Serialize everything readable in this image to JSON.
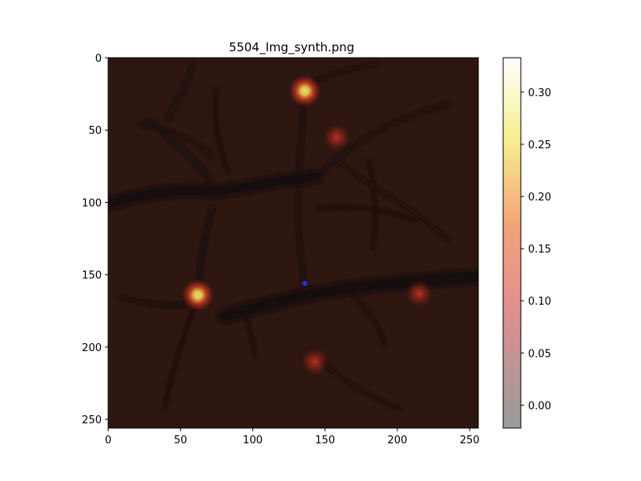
{
  "chart_data": {
    "type": "heatmap",
    "title": "5504_Img_synth.png",
    "xlabel": "",
    "ylabel": "",
    "xlim": [
      0,
      256
    ],
    "ylim": [
      256,
      0
    ],
    "x_ticks": [
      0,
      50,
      100,
      150,
      200,
      250
    ],
    "y_ticks": [
      0,
      50,
      100,
      150,
      200,
      250
    ],
    "colorbar": {
      "colormap": "hot",
      "range": [
        -0.022,
        0.333
      ],
      "ticks": [
        "0.00",
        "0.05",
        "0.10",
        "0.15",
        "0.20",
        "0.25",
        "0.30"
      ]
    },
    "hotspots": [
      {
        "x": 136,
        "y": 23,
        "value": 0.24
      },
      {
        "x": 62,
        "y": 164,
        "value": 0.22
      },
      {
        "x": 158,
        "y": 55,
        "value": 0.09
      },
      {
        "x": 143,
        "y": 210,
        "value": 0.09
      },
      {
        "x": 215,
        "y": 163,
        "value": 0.08
      }
    ],
    "marker": {
      "x": 136,
      "y": 156,
      "color": "#2233dd"
    },
    "grid": false
  }
}
